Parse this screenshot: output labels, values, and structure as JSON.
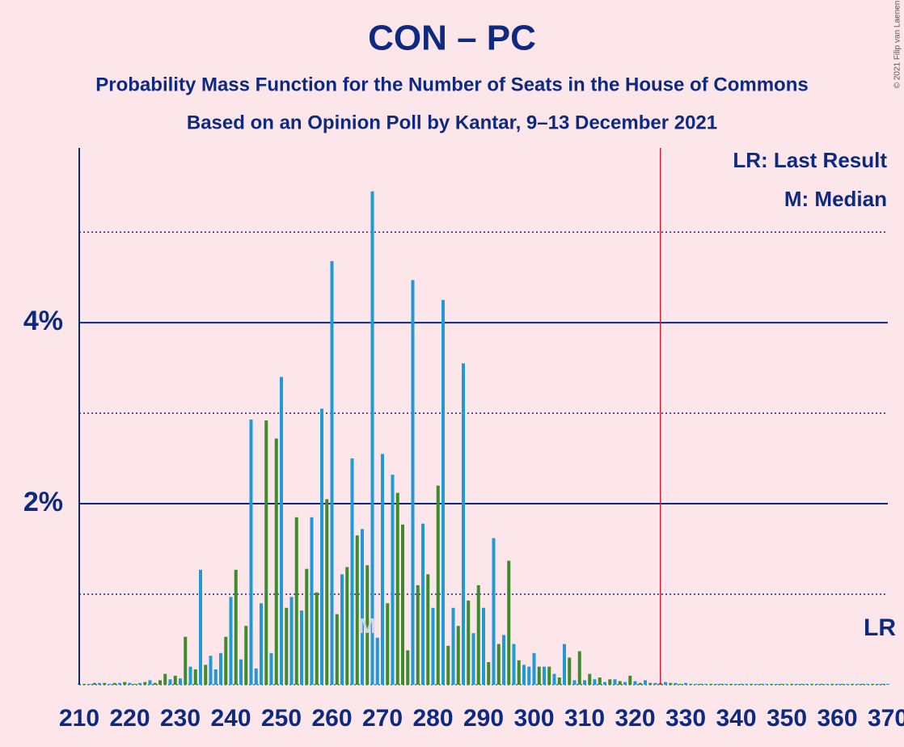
{
  "chart_data": {
    "type": "bar",
    "title": "CON – PC",
    "subtitle": "Probability Mass Function for the Number of Seats in the House of Commons",
    "subtitle2": "Based on an Opinion Poll by Kantar, 9–13 December 2021",
    "copyright": "© 2021 Filip van Laenen",
    "legend": [
      "LR: Last Result",
      "M: Median"
    ],
    "last_result": 325,
    "last_result_label": "LR",
    "last_result_color": "#d0203a",
    "median": 267,
    "median_label": "M",
    "x": [
      210,
      211,
      212,
      213,
      214,
      215,
      216,
      217,
      218,
      219,
      220,
      221,
      222,
      223,
      224,
      225,
      226,
      227,
      228,
      229,
      230,
      231,
      232,
      233,
      234,
      235,
      236,
      237,
      238,
      239,
      240,
      241,
      242,
      243,
      244,
      245,
      246,
      247,
      248,
      249,
      250,
      251,
      252,
      253,
      254,
      255,
      256,
      257,
      258,
      259,
      260,
      261,
      262,
      263,
      264,
      265,
      266,
      267,
      268,
      269,
      270,
      271,
      272,
      273,
      274,
      275,
      276,
      277,
      278,
      279,
      280,
      281,
      282,
      283,
      284,
      285,
      286,
      287,
      288,
      289,
      290,
      291,
      292,
      293,
      294,
      295,
      296,
      297,
      298,
      299,
      300,
      301,
      302,
      303,
      304,
      305,
      306,
      307,
      308,
      309,
      310,
      311,
      312,
      313,
      314,
      315,
      316,
      317,
      318,
      319,
      320,
      321,
      322,
      323,
      324,
      325,
      326,
      327,
      328,
      329,
      330,
      331,
      332,
      333,
      334,
      335,
      336,
      337,
      338,
      339,
      340,
      341,
      342,
      343,
      344,
      345,
      346,
      347,
      348,
      349,
      350,
      351,
      352,
      353,
      354,
      355,
      356,
      357,
      358,
      359,
      360,
      361,
      362,
      363,
      364,
      365,
      366,
      367,
      368,
      369,
      370
    ],
    "values": [
      0.01,
      0.01,
      0.01,
      0.02,
      0.02,
      0.02,
      0.01,
      0.02,
      0.02,
      0.03,
      0.02,
      0.01,
      0.02,
      0.03,
      0.05,
      0.02,
      0.05,
      0.12,
      0.06,
      0.1,
      0.07,
      0.53,
      0.2,
      0.17,
      1.27,
      0.22,
      0.32,
      0.17,
      0.35,
      0.53,
      0.97,
      1.27,
      0.28,
      0.65,
      2.93,
      0.18,
      0.9,
      2.92,
      0.35,
      2.72,
      3.4,
      0.85,
      0.97,
      1.85,
      0.82,
      1.28,
      1.85,
      1.02,
      3.05,
      2.05,
      4.68,
      0.78,
      1.22,
      1.3,
      2.5,
      1.65,
      1.72,
      1.32,
      5.45,
      0.52,
      2.55,
      0.9,
      2.32,
      2.12,
      1.77,
      0.38,
      4.47,
      1.1,
      1.78,
      1.22,
      0.85,
      2.2,
      4.25,
      0.43,
      0.85,
      0.65,
      3.55,
      0.93,
      0.57,
      1.1,
      0.85,
      0.25,
      1.62,
      0.45,
      0.55,
      1.37,
      0.45,
      0.27,
      0.22,
      0.2,
      0.35,
      0.2,
      0.2,
      0.2,
      0.12,
      0.08,
      0.45,
      0.3,
      0.05,
      0.37,
      0.05,
      0.12,
      0.06,
      0.08,
      0.03,
      0.06,
      0.06,
      0.04,
      0.03,
      0.1,
      0.04,
      0.02,
      0.05,
      0.02,
      0.02,
      0.02,
      0.03,
      0.02,
      0.02,
      0.01,
      0.02,
      0.01,
      0.01,
      0.01,
      0.01,
      0.01,
      0.01,
      0.01,
      0.01,
      0.01,
      0.01,
      0.01,
      0.01,
      0.01,
      0.01,
      0.01,
      0.01,
      0.01,
      0.01,
      0.01,
      0.01,
      0.01,
      0.01,
      0.01,
      0.01,
      0.01,
      0.01,
      0.01,
      0.01,
      0.01,
      0.01,
      0.01,
      0.01,
      0.01,
      0.01,
      0.01,
      0.01,
      0.01,
      0.01,
      0.01,
      0.01
    ],
    "colors": [
      "#1f9ad8",
      "#3f8b2c",
      "#1f9ad8",
      "#3f8b2c",
      "#1f9ad8",
      "#3f8b2c",
      "#1f9ad8",
      "#3f8b2c",
      "#1f9ad8",
      "#3f8b2c",
      "#1f9ad8",
      "#3f8b2c",
      "#1f9ad8",
      "#3f8b2c",
      "#1f9ad8",
      "#3f8b2c",
      "#3f8b2c",
      "#3f8b2c",
      "#1f9ad8",
      "#3f8b2c",
      "#1f9ad8",
      "#3f8b2c",
      "#1f9ad8",
      "#3f8b2c",
      "#1f9ad8",
      "#3f8b2c",
      "#1f9ad8",
      "#1f9ad8",
      "#1f9ad8",
      "#3f8b2c",
      "#1f9ad8",
      "#3f8b2c",
      "#1f9ad8",
      "#3f8b2c",
      "#1f9ad8",
      "#1f9ad8",
      "#1f9ad8",
      "#3f8b2c",
      "#1f9ad8",
      "#3f8b2c",
      "#1f9ad8",
      "#3f8b2c",
      "#1f9ad8",
      "#3f8b2c",
      "#1f9ad8",
      "#3f8b2c",
      "#1f9ad8",
      "#3f8b2c",
      "#1f9ad8",
      "#3f8b2c",
      "#1f9ad8",
      "#3f8b2c",
      "#1f9ad8",
      "#3f8b2c",
      "#1f9ad8",
      "#3f8b2c",
      "#1f9ad8",
      "#3f8b2c",
      "#1f9ad8",
      "#1f9ad8",
      "#1f9ad8",
      "#3f8b2c",
      "#1f9ad8",
      "#3f8b2c",
      "#3f8b2c",
      "#3f8b2c",
      "#1f9ad8",
      "#3f8b2c",
      "#1f9ad8",
      "#3f8b2c",
      "#1f9ad8",
      "#3f8b2c",
      "#1f9ad8",
      "#3f8b2c",
      "#1f9ad8",
      "#3f8b2c",
      "#1f9ad8",
      "#3f8b2c",
      "#1f9ad8",
      "#3f8b2c",
      "#1f9ad8",
      "#3f8b2c",
      "#1f9ad8",
      "#3f8b2c",
      "#1f9ad8",
      "#3f8b2c",
      "#1f9ad8",
      "#3f8b2c",
      "#1f9ad8",
      "#1f9ad8",
      "#1f9ad8",
      "#3f8b2c",
      "#1f9ad8",
      "#3f8b2c",
      "#1f9ad8",
      "#3f8b2c",
      "#1f9ad8",
      "#3f8b2c",
      "#1f9ad8",
      "#3f8b2c",
      "#1f9ad8",
      "#3f8b2c",
      "#1f9ad8",
      "#3f8b2c",
      "#1f9ad8",
      "#3f8b2c",
      "#1f9ad8",
      "#3f8b2c",
      "#1f9ad8",
      "#3f8b2c",
      "#1f9ad8",
      "#3f8b2c",
      "#1f9ad8",
      "#3f8b2c",
      "#1f9ad8",
      "#3f8b2c",
      "#1f9ad8",
      "#3f8b2c",
      "#1f9ad8",
      "#3f8b2c",
      "#1f9ad8",
      "#3f8b2c",
      "#1f9ad8",
      "#3f8b2c",
      "#1f9ad8",
      "#3f8b2c",
      "#1f9ad8",
      "#3f8b2c",
      "#1f9ad8",
      "#3f8b2c",
      "#1f9ad8",
      "#3f8b2c",
      "#1f9ad8",
      "#3f8b2c",
      "#1f9ad8",
      "#3f8b2c",
      "#1f9ad8",
      "#3f8b2c",
      "#1f9ad8",
      "#3f8b2c",
      "#1f9ad8",
      "#3f8b2c",
      "#1f9ad8",
      "#3f8b2c",
      "#1f9ad8",
      "#3f8b2c",
      "#1f9ad8",
      "#3f8b2c",
      "#1f9ad8",
      "#3f8b2c",
      "#1f9ad8",
      "#3f8b2c",
      "#1f9ad8",
      "#3f8b2c",
      "#1f9ad8",
      "#3f8b2c",
      "#1f9ad8",
      "#3f8b2c",
      "#1f9ad8",
      "#3f8b2c",
      "#1f9ad8"
    ],
    "xlim": [
      210,
      370
    ],
    "xticks": [
      210,
      220,
      230,
      240,
      250,
      260,
      270,
      280,
      290,
      300,
      310,
      320,
      330,
      340,
      350,
      360,
      370
    ],
    "ylim": [
      0,
      5.93
    ],
    "yticks": [
      {
        "value": 2,
        "label": "2%"
      },
      {
        "value": 4,
        "label": "4%"
      }
    ],
    "yminor": [
      1,
      3,
      5
    ],
    "grid": true
  }
}
